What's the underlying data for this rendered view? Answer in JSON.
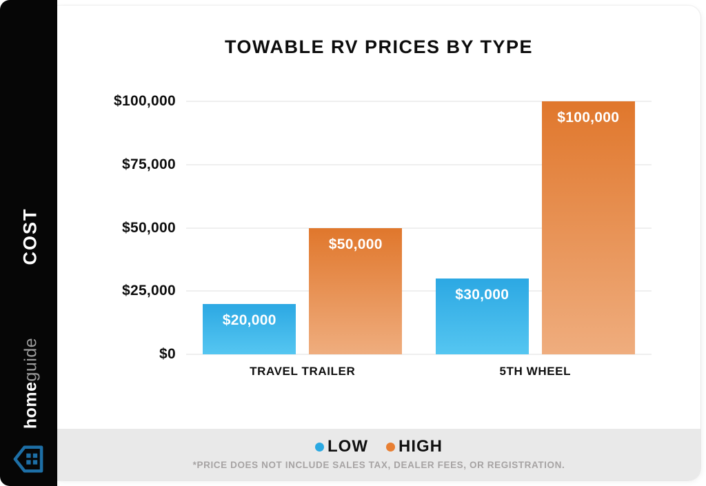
{
  "sidebar": {
    "cost_label": "COST",
    "brand_bold": "home",
    "brand_light": "guide",
    "logo_color": "#1d6fa6"
  },
  "chart_data": {
    "type": "bar",
    "title": "TOWABLE RV PRICES BY TYPE",
    "categories": [
      "TRAVEL TRAILER",
      "5TH WHEEL"
    ],
    "series": [
      {
        "name": "LOW",
        "values": [
          20000,
          30000
        ],
        "labels": [
          "$20,000",
          "$30,000"
        ],
        "color_top": "#2CA8E3",
        "color_bottom": "#55C6F1"
      },
      {
        "name": "HIGH",
        "values": [
          50000,
          100000
        ],
        "labels": [
          "$50,000",
          "$100,000"
        ],
        "color_top": "#E0772C",
        "color_bottom": "#EFAD7E"
      }
    ],
    "y_ticks": [
      {
        "value": 100000,
        "label": "$100,000"
      },
      {
        "value": 75000,
        "label": "$75,000"
      },
      {
        "value": 50000,
        "label": "$50,000"
      },
      {
        "value": 25000,
        "label": "$25,000"
      },
      {
        "value": 0,
        "label": "$0"
      }
    ],
    "ylim": [
      0,
      100000
    ],
    "grid": true,
    "legend_position": "bottom"
  },
  "legend": {
    "items": [
      {
        "label": "LOW",
        "color": "#2BA9E2"
      },
      {
        "label": "HIGH",
        "color": "#E87F33"
      }
    ]
  },
  "footnote": "*PRICE DOES NOT INCLUDE SALES TAX, DEALER FEES, OR REGISTRATION."
}
